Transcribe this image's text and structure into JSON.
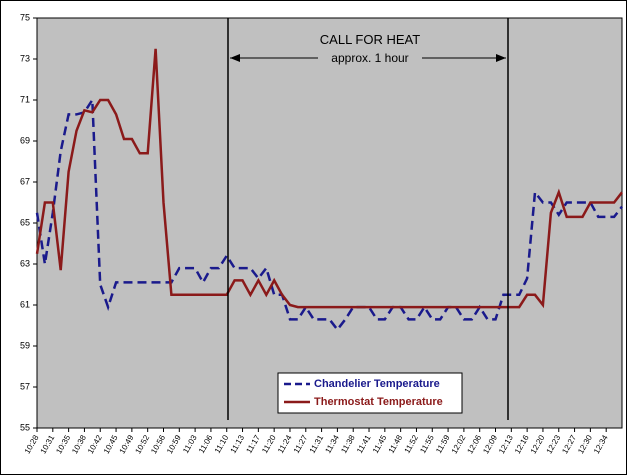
{
  "chart_data": {
    "type": "line",
    "annotations": [
      "CALL FOR HEAT",
      "approx. 1 hour"
    ],
    "categories": [
      "10:28",
      null,
      "10:31",
      null,
      "10:35",
      null,
      "10:38",
      null,
      "10:42",
      null,
      "10:45",
      null,
      "10:49",
      null,
      "10:52",
      null,
      "10:56",
      null,
      "10:59",
      null,
      "11:03",
      null,
      "11:06",
      null,
      "11:10",
      null,
      "11:13",
      null,
      "11:17",
      null,
      "11:20",
      null,
      "11:24",
      null,
      "11:27",
      null,
      "11:31",
      null,
      "11:34",
      null,
      "11:38",
      null,
      "11:41",
      null,
      "11:45",
      null,
      "11:48",
      null,
      "11:52",
      null,
      "11:55",
      null,
      "11:59",
      null,
      "12:02",
      null,
      "12:06",
      null,
      "12:09",
      null,
      "12:13",
      null,
      "12:16",
      null,
      "12:20",
      null,
      "12:23",
      null,
      "12:27",
      null,
      "12:30",
      null,
      "12:34",
      null,
      null
    ],
    "series": [
      {
        "name": "Chandelier Temperature",
        "color": "#1a1a8c",
        "line_style": "dashed",
        "values": [
          65.5,
          63.0,
          65.5,
          68.5,
          70.3,
          70.3,
          70.4,
          71.0,
          62.0,
          60.9,
          62.1,
          62.1,
          62.1,
          62.1,
          62.1,
          62.1,
          62.1,
          62.1,
          62.8,
          62.8,
          62.8,
          62.1,
          62.8,
          62.8,
          63.4,
          62.8,
          62.8,
          62.8,
          62.3,
          62.8,
          61.5,
          61.5,
          60.3,
          60.3,
          60.9,
          60.3,
          60.3,
          60.3,
          59.8,
          60.3,
          60.9,
          60.9,
          60.9,
          60.3,
          60.3,
          60.9,
          60.9,
          60.3,
          60.3,
          60.9,
          60.3,
          60.3,
          60.9,
          60.9,
          60.3,
          60.3,
          60.9,
          60.3,
          60.3,
          61.5,
          61.5,
          61.5,
          62.3,
          66.5,
          66.0,
          66.0,
          65.4,
          66.0,
          66.0,
          66.0,
          66.0,
          65.3,
          65.3,
          65.3,
          65.8
        ]
      },
      {
        "name": "Thermostat Temperature",
        "color": "#8b1a1a",
        "line_style": "solid",
        "values": [
          63.5,
          66.0,
          66.0,
          62.7,
          67.5,
          69.5,
          70.5,
          70.4,
          71.0,
          71.0,
          70.3,
          69.1,
          69.1,
          68.4,
          68.4,
          73.5,
          66.0,
          61.5,
          61.5,
          61.5,
          61.5,
          61.5,
          61.5,
          61.5,
          61.5,
          62.2,
          62.2,
          61.5,
          62.2,
          61.5,
          62.2,
          61.5,
          61.0,
          60.9,
          60.9,
          60.9,
          60.9,
          60.9,
          60.9,
          60.9,
          60.9,
          60.9,
          60.9,
          60.9,
          60.9,
          60.9,
          60.9,
          60.9,
          60.9,
          60.9,
          60.9,
          60.9,
          60.9,
          60.9,
          60.9,
          60.9,
          60.9,
          60.9,
          60.9,
          60.9,
          60.9,
          60.9,
          61.5,
          61.5,
          61.0,
          65.5,
          66.5,
          65.3,
          65.3,
          65.3,
          66.0,
          66.0,
          66.0,
          66.0,
          66.5
        ]
      }
    ],
    "ylim": [
      55,
      75
    ],
    "yticks": [
      55,
      57,
      59,
      61,
      63,
      65,
      67,
      69,
      71,
      73,
      75
    ],
    "grid": false,
    "background": "#c0c0c0"
  }
}
